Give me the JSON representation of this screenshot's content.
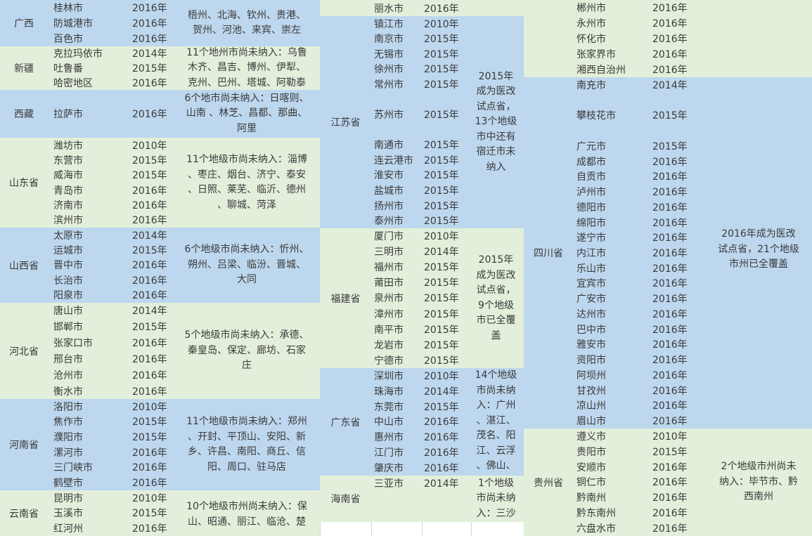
{
  "colors": {
    "blue": "#bdd7ee",
    "green": "#e2efda"
  },
  "left": [
    {
      "province": "广西",
      "color": "blue",
      "cities": [
        [
          "桂林市",
          "2016年"
        ],
        [
          "防城港市",
          "2016年"
        ],
        [
          "百色市",
          "2016年"
        ]
      ],
      "note": [
        "梧州、北海、钦州、贵港、",
        "贺州、河池、来宾、崇左"
      ]
    },
    {
      "province": "新疆",
      "color": "green",
      "cities": [
        [
          "克拉玛依市",
          "2014年"
        ],
        [
          "吐鲁番",
          "2015年"
        ],
        [
          "哈密地区",
          "2016年"
        ]
      ],
      "note": [
        "11个地州市尚未纳入：乌鲁",
        "木齐、昌吉、博州、伊犁、",
        "克州、巴州、塔城、阿勒泰"
      ]
    },
    {
      "province": "西藏",
      "color": "blue",
      "cities": [
        [
          "拉萨市",
          "2016年"
        ]
      ],
      "note": [
        "6个地市尚未纳入：日喀则、",
        "山南 、林芝、昌都、那曲、",
        "阿里"
      ]
    },
    {
      "province": "山东省",
      "color": "green",
      "cities": [
        [
          "潍坊市",
          "2010年"
        ],
        [
          "东营市",
          "2015年"
        ],
        [
          "威海市",
          "2015年"
        ],
        [
          "青岛市",
          "2016年"
        ],
        [
          "济南市",
          "2016年"
        ],
        [
          "滨州市",
          "2016年"
        ]
      ],
      "note": [
        "11个地级市尚未纳入：淄博",
        "、枣庄、烟台、济宁、泰安",
        "、日照、莱芜、临沂、德州",
        "、聊城、菏泽"
      ]
    },
    {
      "province": "山西省",
      "color": "blue",
      "cities": [
        [
          "太原市",
          "2014年"
        ],
        [
          "运城市",
          "2015年"
        ],
        [
          "晋中市",
          "2016年"
        ],
        [
          "长治市",
          "2016年"
        ],
        [
          "阳泉市",
          "2016年"
        ]
      ],
      "note": [
        "6个地级市尚未纳入：忻州、",
        "朔州、吕梁、临汾、晋城、",
        "大同"
      ]
    },
    {
      "province": "河北省",
      "color": "green",
      "cities": [
        [
          "唐山市",
          "2014年"
        ],
        [
          "邯郸市",
          "2015年"
        ],
        [
          "张家口市",
          "2016年"
        ],
        [
          "邢台市",
          "2016年"
        ],
        [
          "沧州市",
          "2016年"
        ],
        [
          "衡水市",
          "2016年"
        ]
      ],
      "note": [
        "5个地级市尚未纳入：承德、",
        "秦皇岛、保定、廊坊、石家",
        "庄"
      ]
    },
    {
      "province": "河南省",
      "color": "blue",
      "cities": [
        [
          "洛阳市",
          "2010年"
        ],
        [
          "焦作市",
          "2015年"
        ],
        [
          "濮阳市",
          "2015年"
        ],
        [
          "漯河市",
          "2016年"
        ],
        [
          "三门峡市",
          "2016年"
        ],
        [
          "鹤壁市",
          "2016年"
        ]
      ],
      "note": [
        "11个地级市尚未纳入：郑州",
        "、开封、平顶山、安阳、新",
        "乡、许昌、南阳、商丘、信",
        "阳、周口、驻马店"
      ]
    },
    {
      "province": "云南省",
      "color": "green",
      "cities": [
        [
          "昆明市",
          "2010年"
        ],
        [
          "玉溪市",
          "2015年"
        ],
        [
          "红河州",
          "2016年"
        ]
      ],
      "note": [
        "10个地级市州尚未纳入：保",
        "山、昭通、丽江、临沧、楚"
      ]
    }
  ],
  "middle": [
    {
      "province": "",
      "color": "green",
      "cities": [
        [
          "丽水市",
          "2016年"
        ]
      ],
      "note": []
    },
    {
      "province": "江苏省",
      "color": "blue",
      "cities": [
        [
          "镇江市",
          "2010年"
        ],
        [
          "南京市",
          "2015年"
        ],
        [
          "无锡市",
          "2015年"
        ],
        [
          "徐州市",
          "2015年"
        ],
        [
          "常州市",
          "2015年"
        ],
        [
          "苏州市",
          "2015年"
        ],
        [
          "南通市",
          "2015年"
        ],
        [
          "连云港市",
          "2015年"
        ],
        [
          "淮安市",
          "2015年"
        ],
        [
          "盐城市",
          "2015年"
        ],
        [
          "扬州市",
          "2015年"
        ],
        [
          "泰州市",
          "2015年"
        ]
      ],
      "note": [
        "2015年",
        "成为医改",
        "试点省，",
        "13个地级",
        "市中还有",
        "宿迁市未",
        "纳入"
      ]
    },
    {
      "province": "福建省",
      "color": "green",
      "cities": [
        [
          "厦门市",
          "2010年"
        ],
        [
          "三明市",
          "2014年"
        ],
        [
          "福州市",
          "2015年"
        ],
        [
          "莆田市",
          "2015年"
        ],
        [
          "泉州市",
          "2015年"
        ],
        [
          "漳州市",
          "2015年"
        ],
        [
          "南平市",
          "2015年"
        ],
        [
          "龙岩市",
          "2015年"
        ],
        [
          "宁德市",
          "2015年"
        ]
      ],
      "note": [
        "2015年",
        "成为医改",
        "试点省，",
        "9个地级",
        "市已全覆",
        "盖"
      ]
    },
    {
      "province": "广东省",
      "color": "blue",
      "cities": [
        [
          "深圳市",
          "2010年"
        ],
        [
          "珠海市",
          "2014年"
        ],
        [
          "东莞市",
          "2015年"
        ],
        [
          "中山市",
          "2016年"
        ],
        [
          "惠州市",
          "2016年"
        ],
        [
          "江门市",
          "2016年"
        ],
        [
          "肇庆市",
          "2016年"
        ]
      ],
      "note": [
        "14个地级",
        "市尚未纳",
        "入：广州",
        "、湛江、",
        "茂名、阳",
        "江、云浮",
        "、佛山、"
      ]
    },
    {
      "province": "海南省",
      "color": "green",
      "cities": [
        [
          "三亚市",
          "2014年"
        ]
      ],
      "note": [
        "1个地级",
        "市尚未纳",
        "入：三沙"
      ]
    }
  ],
  "right": [
    {
      "province": "",
      "color": "green",
      "cities": [
        [
          "郴州市",
          "2016年"
        ],
        [
          "永州市",
          "2016年"
        ],
        [
          "怀化市",
          "2016年"
        ],
        [
          "张家界市",
          "2016年"
        ],
        [
          "湘西自治州",
          "2016年"
        ]
      ],
      "note": []
    },
    {
      "province": "四川省",
      "color": "blue",
      "cities": [
        [
          "南充市",
          "2014年"
        ],
        [
          "攀枝花市",
          "2015年"
        ],
        [
          "广元市",
          "2015年"
        ],
        [
          "成都市",
          "2016年"
        ],
        [
          "自贡市",
          "2016年"
        ],
        [
          "泸州市",
          "2016年"
        ],
        [
          "德阳市",
          "2016年"
        ],
        [
          "绵阳市",
          "2016年"
        ],
        [
          "遂宁市",
          "2016年"
        ],
        [
          "内江市",
          "2016年"
        ],
        [
          "乐山市",
          "2016年"
        ],
        [
          "宜宾市",
          "2016年"
        ],
        [
          "广安市",
          "2016年"
        ],
        [
          "达州市",
          "2016年"
        ],
        [
          "巴中市",
          "2016年"
        ],
        [
          "雅安市",
          "2016年"
        ],
        [
          "资阳市",
          "2016年"
        ],
        [
          "阿坝州",
          "2016年"
        ],
        [
          "甘孜州",
          "2016年"
        ],
        [
          "凉山州",
          "2016年"
        ],
        [
          "眉山市",
          "2016年"
        ]
      ],
      "note": [
        "2016年成为医改",
        "试点省，21个地级",
        "市州已全覆盖"
      ]
    },
    {
      "province": "贵州省",
      "color": "green",
      "cities": [
        [
          "遵义市",
          "2010年"
        ],
        [
          "贵阳市",
          "2015年"
        ],
        [
          "安顺市",
          "2016年"
        ],
        [
          "铜仁市",
          "2016年"
        ],
        [
          "黔南州",
          "2016年"
        ],
        [
          "黔东南州",
          "2016年"
        ],
        [
          "六盘水市",
          "2016年"
        ]
      ],
      "note": [
        "2个地级市州尚未",
        "纳入：毕节市、黔",
        "西南州"
      ]
    }
  ]
}
